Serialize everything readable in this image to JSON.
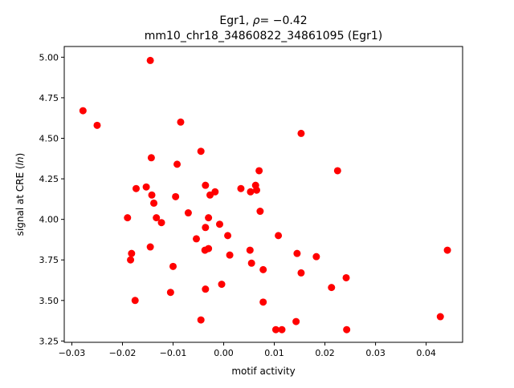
{
  "chart_data": {
    "type": "scatter",
    "title_line1_prefix": "Egr1, ",
    "title_line1_rho": "ρ",
    "title_line1_suffix": "= −0.42",
    "title_line2": "mm10_chr18_34860822_34861095 (Egr1)",
    "xlabel": "motif activity",
    "ylabel_prefix": "signal at CRE (",
    "ylabel_italic": "ln",
    "ylabel_suffix": ")",
    "xlim": [
      -0.0315,
      0.0472
    ],
    "ylim": [
      3.242,
      5.066
    ],
    "xticks": [
      -0.03,
      -0.02,
      -0.01,
      0.0,
      0.01,
      0.02,
      0.03,
      0.04
    ],
    "xtick_labels": [
      "−0.03",
      "−0.02",
      "−0.01",
      "0.00",
      "0.01",
      "0.02",
      "0.03",
      "0.04"
    ],
    "yticks": [
      3.25,
      3.5,
      3.75,
      4.0,
      4.25,
      4.5,
      4.75,
      5.0
    ],
    "ytick_labels": [
      "3.25",
      "3.50",
      "3.75",
      "4.00",
      "4.25",
      "4.50",
      "4.75",
      "5.00"
    ],
    "grid": false,
    "marker_color": "#ff0000",
    "points": [
      {
        "x": -0.0145,
        "y": 4.98
      },
      {
        "x": -0.0278,
        "y": 4.67
      },
      {
        "x": -0.025,
        "y": 4.58
      },
      {
        "x": -0.0085,
        "y": 4.6
      },
      {
        "x": 0.0153,
        "y": 4.53
      },
      {
        "x": -0.0045,
        "y": 4.42
      },
      {
        "x": -0.0143,
        "y": 4.38
      },
      {
        "x": -0.0092,
        "y": 4.34
      },
      {
        "x": 0.007,
        "y": 4.3
      },
      {
        "x": 0.0225,
        "y": 4.3
      },
      {
        "x": -0.0153,
        "y": 4.2
      },
      {
        "x": -0.0173,
        "y": 4.19
      },
      {
        "x": -0.0036,
        "y": 4.21
      },
      {
        "x": 0.0034,
        "y": 4.19
      },
      {
        "x": 0.0063,
        "y": 4.21
      },
      {
        "x": -0.0017,
        "y": 4.17
      },
      {
        "x": 0.0053,
        "y": 4.17
      },
      {
        "x": 0.0065,
        "y": 4.18
      },
      {
        "x": -0.0027,
        "y": 4.15
      },
      {
        "x": -0.0142,
        "y": 4.15
      },
      {
        "x": -0.0095,
        "y": 4.14
      },
      {
        "x": -0.0138,
        "y": 4.1
      },
      {
        "x": 0.0072,
        "y": 4.05
      },
      {
        "x": -0.007,
        "y": 4.04
      },
      {
        "x": -0.019,
        "y": 4.01
      },
      {
        "x": -0.0133,
        "y": 4.01
      },
      {
        "x": -0.003,
        "y": 4.01
      },
      {
        "x": -0.0123,
        "y": 3.98
      },
      {
        "x": -0.0008,
        "y": 3.97
      },
      {
        "x": -0.0036,
        "y": 3.95
      },
      {
        "x": 0.0008,
        "y": 3.9
      },
      {
        "x": 0.0108,
        "y": 3.9
      },
      {
        "x": -0.0054,
        "y": 3.88
      },
      {
        "x": -0.0145,
        "y": 3.83
      },
      {
        "x": -0.003,
        "y": 3.82
      },
      {
        "x": -0.0037,
        "y": 3.81
      },
      {
        "x": 0.0052,
        "y": 3.81
      },
      {
        "x": 0.0442,
        "y": 3.81
      },
      {
        "x": -0.0182,
        "y": 3.79
      },
      {
        "x": 0.0012,
        "y": 3.78
      },
      {
        "x": 0.0145,
        "y": 3.79
      },
      {
        "x": 0.0183,
        "y": 3.77
      },
      {
        "x": -0.0184,
        "y": 3.75
      },
      {
        "x": 0.0055,
        "y": 3.73
      },
      {
        "x": -0.01,
        "y": 3.71
      },
      {
        "x": 0.0078,
        "y": 3.69
      },
      {
        "x": 0.0153,
        "y": 3.67
      },
      {
        "x": 0.0242,
        "y": 3.64
      },
      {
        "x": -0.0004,
        "y": 3.6
      },
      {
        "x": 0.0213,
        "y": 3.58
      },
      {
        "x": -0.0036,
        "y": 3.57
      },
      {
        "x": -0.0105,
        "y": 3.55
      },
      {
        "x": -0.0175,
        "y": 3.5
      },
      {
        "x": 0.0078,
        "y": 3.49
      },
      {
        "x": 0.0428,
        "y": 3.4
      },
      {
        "x": -0.0045,
        "y": 3.38
      },
      {
        "x": 0.0143,
        "y": 3.37
      },
      {
        "x": 0.0103,
        "y": 3.32
      },
      {
        "x": 0.0115,
        "y": 3.32
      },
      {
        "x": 0.0243,
        "y": 3.32
      }
    ]
  }
}
